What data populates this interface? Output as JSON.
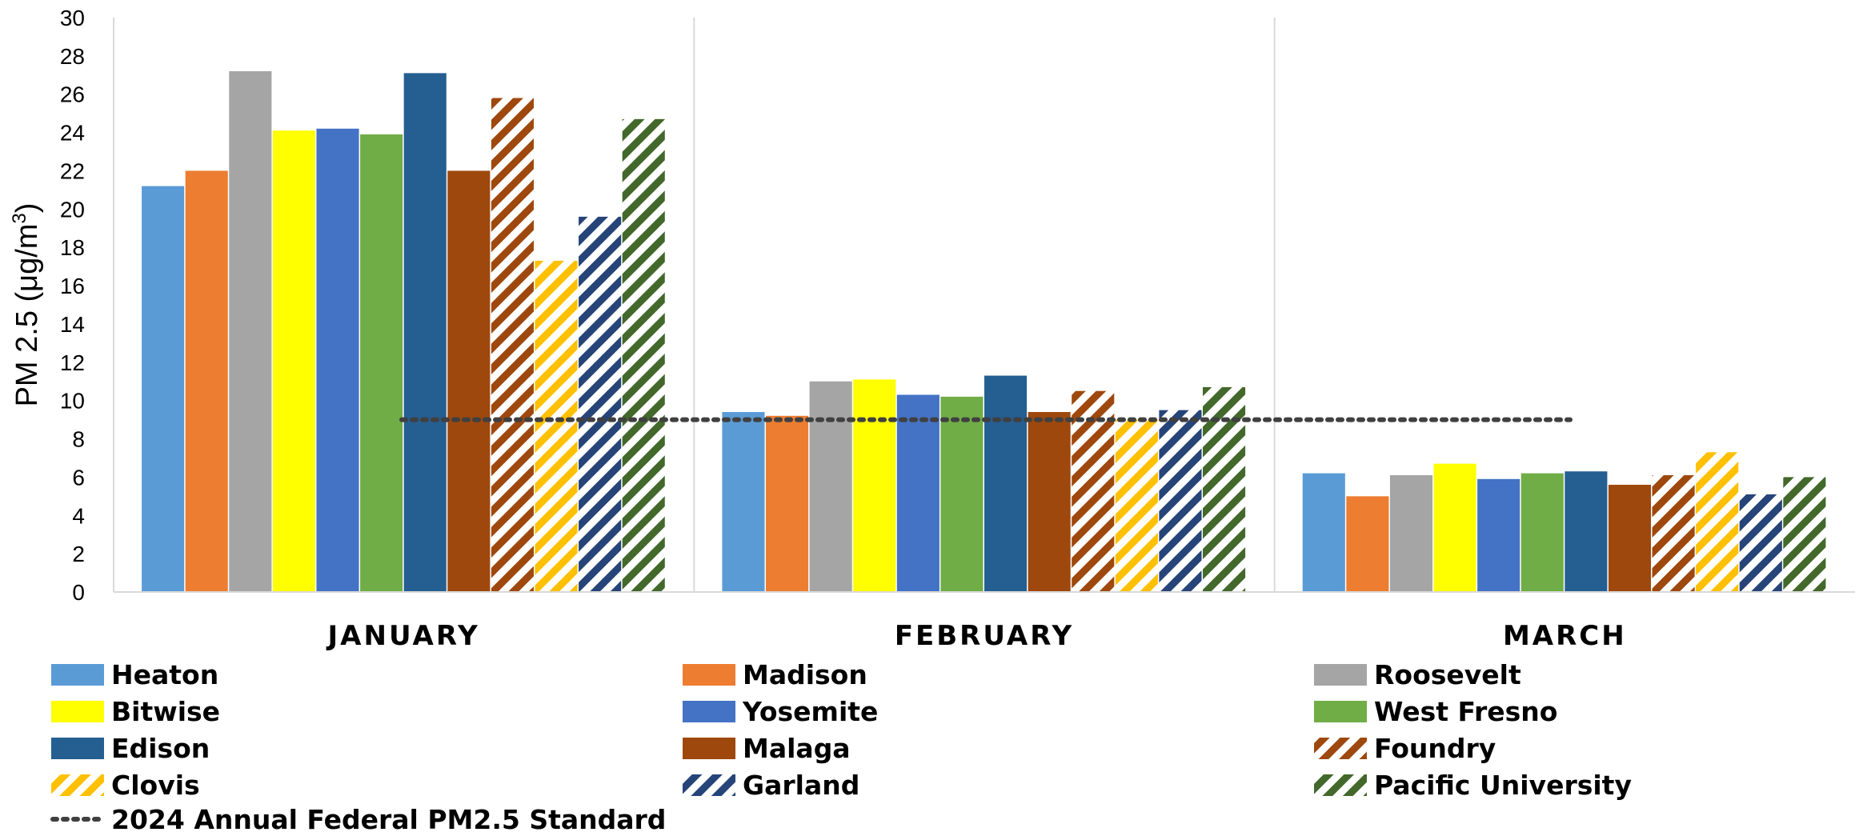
{
  "chart_data": {
    "type": "bar",
    "ylabel": "PM 2.5 (μg/m",
    "ylabel_sup": "3",
    "ylabel_close": ")",
    "ylim": [
      0,
      30
    ],
    "yticks": [
      0,
      2,
      4,
      6,
      8,
      10,
      12,
      14,
      16,
      18,
      20,
      22,
      24,
      26,
      28,
      30
    ],
    "categories": [
      "JANUARY",
      "FEBRUARY",
      "MARCH"
    ],
    "grid": "vertical separators between categories",
    "legend_placement": "bottom",
    "series": [
      {
        "name": "Heaton",
        "color": "#5B9BD5",
        "hatched": false,
        "values": [
          21.2,
          9.4,
          6.2
        ]
      },
      {
        "name": "Madison",
        "color": "#ED7D31",
        "hatched": false,
        "values": [
          22.0,
          9.2,
          5.0
        ]
      },
      {
        "name": "Roosevelt",
        "color": "#A5A5A5",
        "hatched": false,
        "values": [
          27.2,
          11.0,
          6.1
        ]
      },
      {
        "name": "Bitwise",
        "color": "#FFFF00",
        "hatched": false,
        "values": [
          24.1,
          11.1,
          6.7
        ]
      },
      {
        "name": "Yosemite",
        "color": "#4472C4",
        "hatched": false,
        "values": [
          24.2,
          10.3,
          5.9
        ]
      },
      {
        "name": "West Fresno",
        "color": "#70AD47",
        "hatched": false,
        "values": [
          23.9,
          10.2,
          6.2
        ]
      },
      {
        "name": "Edison",
        "color": "#255E91",
        "hatched": false,
        "values": [
          27.1,
          11.3,
          6.3
        ]
      },
      {
        "name": "Malaga",
        "color": "#9E480E",
        "hatched": false,
        "values": [
          22.0,
          9.4,
          5.6
        ]
      },
      {
        "name": "Foundry",
        "color": "#9E480E",
        "hatched": true,
        "values": [
          25.8,
          10.5,
          6.1
        ]
      },
      {
        "name": "Clovis",
        "color": "#FFC000",
        "hatched": true,
        "values": [
          17.3,
          9.0,
          7.3
        ]
      },
      {
        "name": "Garland",
        "color": "#264478",
        "hatched": true,
        "values": [
          19.6,
          9.5,
          5.1
        ]
      },
      {
        "name": "Pacific University",
        "color": "#43682B",
        "hatched": true,
        "values": [
          24.7,
          10.7,
          6.0
        ]
      }
    ],
    "reference_line": {
      "name": "2024 Annual Federal PM2.5 Standard",
      "value": 9,
      "color": "#404040",
      "style": "dotted"
    }
  }
}
